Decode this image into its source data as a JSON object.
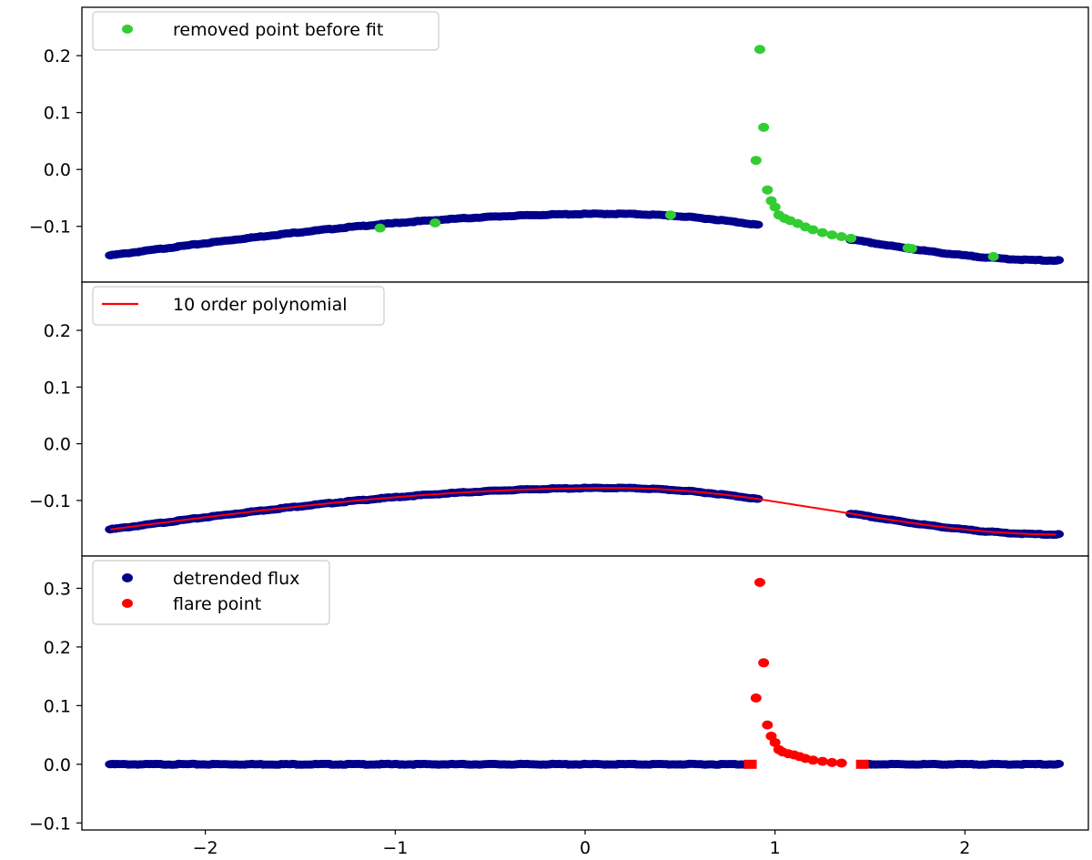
{
  "chart_data": [
    {
      "type": "scatter",
      "panel": "top",
      "xlim": [
        -2.65,
        2.65
      ],
      "ylim": [
        -0.198,
        0.285
      ],
      "yticks": [
        0.2,
        0.1,
        0.0,
        -0.1
      ],
      "ytick_labels": [
        "0.2",
        "0.1",
        "0.0",
        "−0.1"
      ],
      "grid": false,
      "legend_placement": "upper-left",
      "legend": [
        {
          "label": "removed point before fit",
          "marker": "circle",
          "color": "#32cd32"
        }
      ],
      "series": [
        {
          "role": "flux",
          "color": "#00008b",
          "marker": "circle",
          "x_range": [
            -2.5,
            2.5
          ]
        },
        {
          "name": "removed point before fit",
          "color": "#32cd32",
          "marker": "circle",
          "x": [
            -1.08,
            -0.79,
            0.45,
            0.9,
            0.92,
            0.94,
            0.96,
            0.98,
            1.0,
            1.02,
            1.05,
            1.08,
            1.12,
            1.16,
            1.2,
            1.25,
            1.3,
            1.35,
            1.4,
            1.7,
            1.72,
            2.15
          ],
          "y": [
            -0.103,
            -0.094,
            -0.08,
            0.016,
            0.211,
            0.074,
            -0.036,
            -0.055,
            -0.066,
            -0.08,
            -0.086,
            -0.09,
            -0.095,
            -0.101,
            -0.106,
            -0.111,
            -0.115,
            -0.118,
            -0.121,
            -0.138,
            -0.139,
            -0.153
          ]
        }
      ]
    },
    {
      "type": "line",
      "panel": "middle",
      "xlim": [
        -2.65,
        2.65
      ],
      "ylim": [
        -0.198,
        0.285
      ],
      "yticks": [
        0.2,
        0.1,
        0.0,
        -0.1
      ],
      "ytick_labels": [
        "0.2",
        "0.1",
        "0.0",
        "−0.1"
      ],
      "grid": false,
      "legend_placement": "upper-left",
      "legend": [
        {
          "label": "10 order polynomial",
          "marker": "line",
          "color": "#ff0000"
        }
      ],
      "series": [
        {
          "role": "flux",
          "color": "#00008b",
          "marker": "circle",
          "x_range": [
            -2.5,
            2.5
          ],
          "gap": [
            0.92,
            1.4
          ]
        },
        {
          "name": "10 order polynomial",
          "color": "#ff0000",
          "style": "line",
          "x_range": [
            -2.5,
            2.5
          ]
        }
      ]
    },
    {
      "type": "scatter",
      "panel": "bottom",
      "xlim": [
        -2.65,
        2.65
      ],
      "ylim": [
        -0.112,
        0.355
      ],
      "yticks": [
        0.3,
        0.2,
        0.1,
        0.0,
        -0.1
      ],
      "ytick_labels": [
        "0.3",
        "0.2",
        "0.1",
        "0.0",
        "−0.1"
      ],
      "xticks": [
        -2,
        -1,
        0,
        1,
        2
      ],
      "xtick_labels": [
        "−2",
        "−1",
        "0",
        "1",
        "2"
      ],
      "grid": false,
      "legend_placement": "upper-left",
      "legend": [
        {
          "label": "detrended flux",
          "marker": "circle",
          "color": "#00008b"
        },
        {
          "label": "flare point",
          "marker": "circle",
          "color": "#ff0000"
        }
      ],
      "series": [
        {
          "name": "detrended flux",
          "color": "#00008b",
          "marker": "circle",
          "x_range": [
            -2.5,
            2.5
          ],
          "y_level": 0.0
        },
        {
          "name": "flare point",
          "color": "#ff0000",
          "marker": "circle",
          "x": [
            0.9,
            0.92,
            0.94,
            0.96,
            0.98,
            1.0,
            1.02,
            1.04,
            1.07,
            1.1,
            1.13,
            1.16,
            1.2,
            1.25,
            1.3,
            1.35
          ],
          "y": [
            0.113,
            0.31,
            0.173,
            0.067,
            0.048,
            0.037,
            0.025,
            0.021,
            0.018,
            0.016,
            0.013,
            0.01,
            0.007,
            0.005,
            0.003,
            0.002
          ]
        },
        {
          "role": "flare-bounds",
          "color": "#ff0000",
          "marker": "square",
          "x": [
            0.87,
            1.46
          ],
          "y": [
            0.0,
            0.0
          ]
        }
      ]
    }
  ]
}
